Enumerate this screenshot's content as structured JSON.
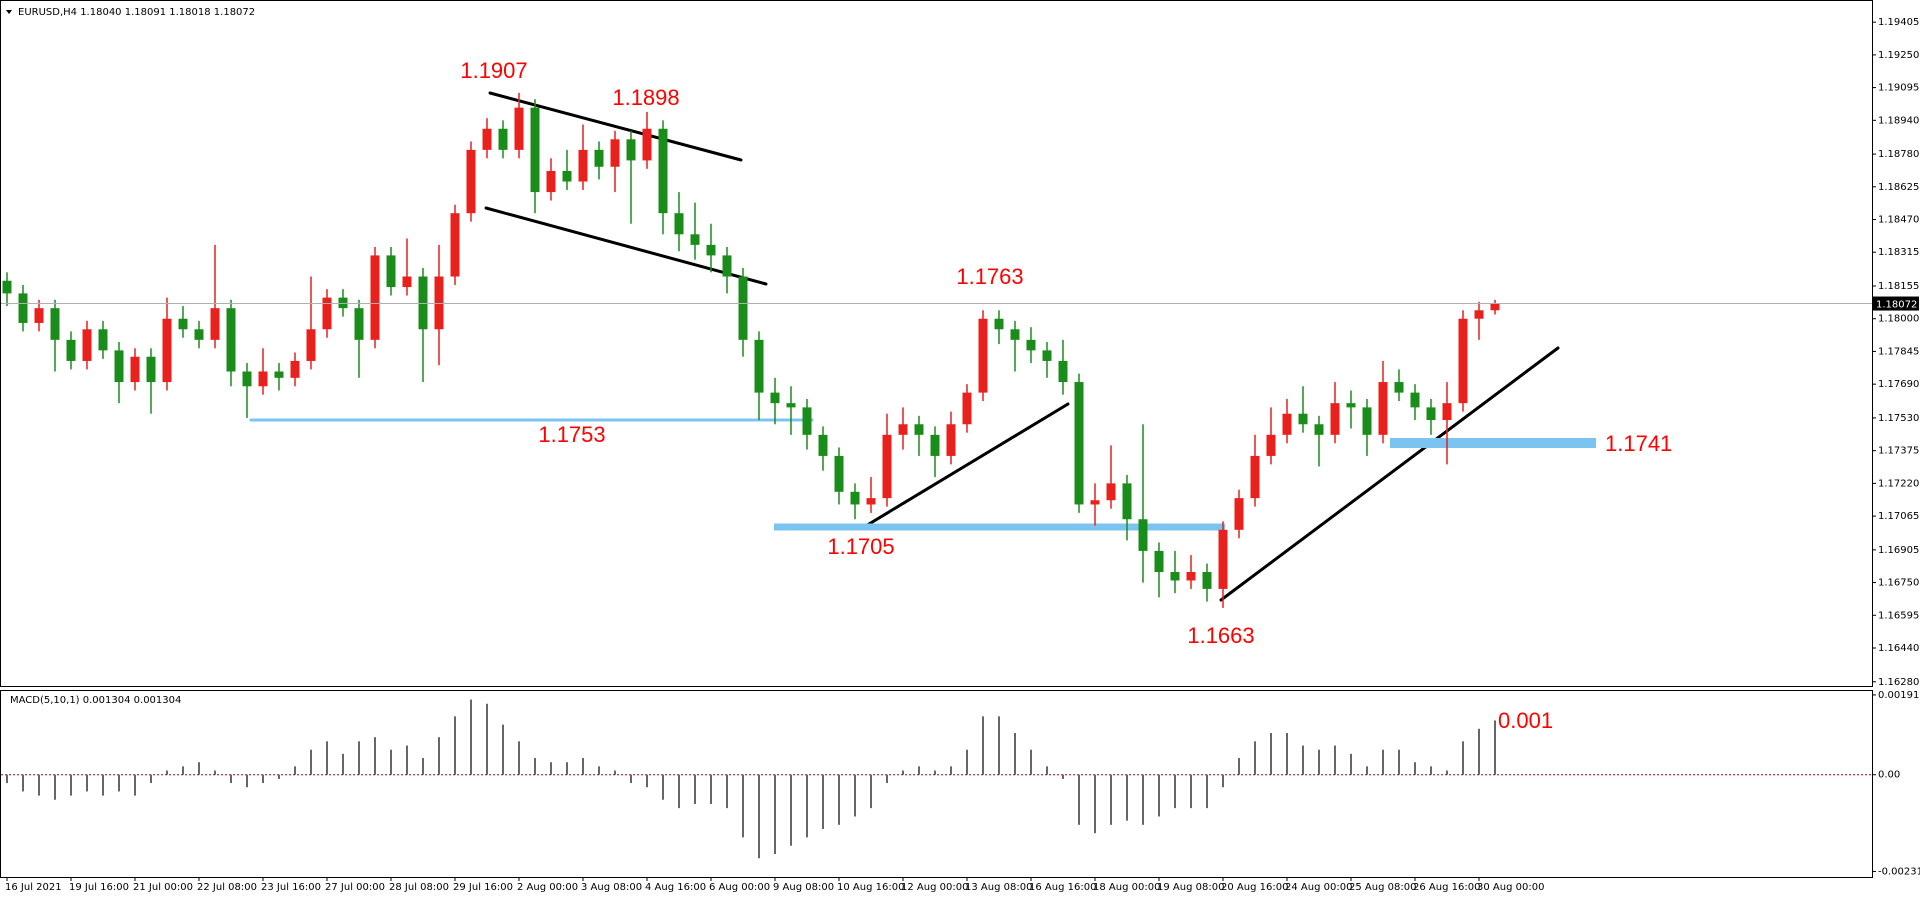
{
  "chart_data": [
    {
      "type": "candlestick",
      "title": "EURUSD,H4  1.18040 1.18091 1.18018 1.18072",
      "categories": [
        "16 Jul 2021",
        null,
        null,
        null,
        "19 Jul 16:00",
        null,
        null,
        null,
        "21 Jul 00:00",
        null,
        null,
        null,
        "22 Jul 08:00",
        null,
        null,
        null,
        "23 Jul 16:00",
        null,
        null,
        null,
        "27 Jul 00:00",
        null,
        null,
        null,
        "28 Jul 08:00",
        null,
        null,
        null,
        "29 Jul 16:00",
        null,
        null,
        null,
        "2 Aug 00:00",
        null,
        null,
        null,
        "3 Aug 08:00",
        null,
        null,
        null,
        "4 Aug 16:00",
        null,
        null,
        null,
        "6 Aug 00:00",
        null,
        null,
        null,
        "9 Aug 08:00",
        null,
        null,
        null,
        "10 Aug 16:00",
        null,
        null,
        null,
        "12 Aug 00:00",
        null,
        null,
        null,
        "13 Aug 08:00",
        null,
        null,
        null,
        "16 Aug 16:00",
        null,
        null,
        null,
        "18 Aug 00:00",
        null,
        null,
        null,
        "19 Aug 08:00",
        null,
        null,
        null,
        "20 Aug 16:00",
        null,
        null,
        null,
        "24 Aug 00:00",
        null,
        null,
        null,
        "25 Aug 08:00",
        null,
        null,
        null,
        "26 Aug 16:00",
        null,
        null,
        null,
        "30 Aug 00:00",
        null
      ],
      "ohlc": [
        [
          1.1818,
          1.1822,
          1.1806,
          1.1812
        ],
        [
          1.1812,
          1.1816,
          1.1794,
          1.1798
        ],
        [
          1.1798,
          1.1809,
          1.1794,
          1.1805
        ],
        [
          1.1805,
          1.1809,
          1.1775,
          1.179
        ],
        [
          1.179,
          1.1794,
          1.1776,
          1.178
        ],
        [
          1.178,
          1.1799,
          1.1776,
          1.1795
        ],
        [
          1.1795,
          1.1799,
          1.1781,
          1.1785
        ],
        [
          1.1785,
          1.1789,
          1.176,
          1.177
        ],
        [
          1.177,
          1.1786,
          1.1766,
          1.1782
        ],
        [
          1.1782,
          1.1786,
          1.1755,
          1.177
        ],
        [
          1.177,
          1.181,
          1.1766,
          1.18
        ],
        [
          1.18,
          1.1806,
          1.1791,
          1.1795
        ],
        [
          1.1795,
          1.1799,
          1.1786,
          1.179
        ],
        [
          1.179,
          1.1835,
          1.1786,
          1.1805
        ],
        [
          1.1805,
          1.1809,
          1.1768,
          1.1775
        ],
        [
          1.1775,
          1.1779,
          1.1753,
          1.1768
        ],
        [
          1.1768,
          1.1786,
          1.1764,
          1.1775
        ],
        [
          1.1775,
          1.1779,
          1.1766,
          1.1772
        ],
        [
          1.1772,
          1.1784,
          1.1768,
          1.178
        ],
        [
          1.178,
          1.182,
          1.1776,
          1.1795
        ],
        [
          1.1795,
          1.1814,
          1.1791,
          1.181
        ],
        [
          1.181,
          1.1814,
          1.1801,
          1.1805
        ],
        [
          1.1805,
          1.1809,
          1.1772,
          1.179
        ],
        [
          1.179,
          1.1834,
          1.1786,
          1.183
        ],
        [
          1.183,
          1.1834,
          1.1811,
          1.1815
        ],
        [
          1.1815,
          1.1838,
          1.1811,
          1.182
        ],
        [
          1.182,
          1.1824,
          1.177,
          1.1795
        ],
        [
          1.1795,
          1.1835,
          1.1778,
          1.182
        ],
        [
          1.182,
          1.1854,
          1.1816,
          1.185
        ],
        [
          1.185,
          1.1884,
          1.1846,
          1.188
        ],
        [
          1.188,
          1.1895,
          1.1876,
          1.189
        ],
        [
          1.189,
          1.1894,
          1.1876,
          1.188
        ],
        [
          1.188,
          1.1907,
          1.1876,
          1.19
        ],
        [
          1.19,
          1.1904,
          1.185,
          1.186
        ],
        [
          1.186,
          1.1876,
          1.1856,
          1.187
        ],
        [
          1.187,
          1.188,
          1.1861,
          1.1865
        ],
        [
          1.1865,
          1.1892,
          1.1861,
          1.188
        ],
        [
          1.188,
          1.1884,
          1.1866,
          1.1872
        ],
        [
          1.1872,
          1.1889,
          1.186,
          1.1885
        ],
        [
          1.1885,
          1.1889,
          1.1845,
          1.1875
        ],
        [
          1.1875,
          1.1898,
          1.1871,
          1.189
        ],
        [
          1.189,
          1.1894,
          1.184,
          1.185
        ],
        [
          1.185,
          1.186,
          1.1832,
          1.184
        ],
        [
          1.184,
          1.1855,
          1.1828,
          1.1835
        ],
        [
          1.1835,
          1.1845,
          1.1822,
          1.183
        ],
        [
          1.183,
          1.1834,
          1.1812,
          1.182
        ],
        [
          1.182,
          1.1824,
          1.1782,
          1.179
        ],
        [
          1.179,
          1.1794,
          1.1752,
          1.1765
        ],
        [
          1.1765,
          1.1772,
          1.175,
          1.176
        ],
        [
          1.176,
          1.1768,
          1.1745,
          1.1758
        ],
        [
          1.1758,
          1.1762,
          1.1738,
          1.1745
        ],
        [
          1.1745,
          1.1749,
          1.1728,
          1.1735
        ],
        [
          1.1735,
          1.1739,
          1.1712,
          1.1718
        ],
        [
          1.1718,
          1.1722,
          1.1705,
          1.1712
        ],
        [
          1.1712,
          1.1725,
          1.1708,
          1.1715
        ],
        [
          1.1715,
          1.1755,
          1.1711,
          1.1745
        ],
        [
          1.1745,
          1.1758,
          1.1738,
          1.175
        ],
        [
          1.175,
          1.1754,
          1.1735,
          1.1745
        ],
        [
          1.1745,
          1.1749,
          1.1725,
          1.1735
        ],
        [
          1.1735,
          1.1756,
          1.1731,
          1.175
        ],
        [
          1.175,
          1.1769,
          1.1746,
          1.1765
        ],
        [
          1.1765,
          1.1804,
          1.1761,
          1.18
        ],
        [
          1.18,
          1.1804,
          1.1788,
          1.1795
        ],
        [
          1.1795,
          1.1799,
          1.1775,
          1.179
        ],
        [
          1.179,
          1.1796,
          1.1779,
          1.1785
        ],
        [
          1.1785,
          1.1789,
          1.1772,
          1.178
        ],
        [
          1.178,
          1.179,
          1.1764,
          1.177
        ],
        [
          1.177,
          1.1774,
          1.1708,
          1.1712
        ],
        [
          1.1712,
          1.1722,
          1.1702,
          1.1714
        ],
        [
          1.1714,
          1.174,
          1.171,
          1.1722
        ],
        [
          1.1722,
          1.1726,
          1.1695,
          1.1705
        ],
        [
          1.1705,
          1.175,
          1.1675,
          1.169
        ],
        [
          1.169,
          1.1694,
          1.1668,
          1.168
        ],
        [
          1.168,
          1.169,
          1.167,
          1.1676
        ],
        [
          1.1676,
          1.1688,
          1.1672,
          1.168
        ],
        [
          1.168,
          1.1684,
          1.1666,
          1.1672
        ],
        [
          1.1672,
          1.1704,
          1.1663,
          1.17
        ],
        [
          1.17,
          1.1719,
          1.1696,
          1.1715
        ],
        [
          1.1715,
          1.1745,
          1.1711,
          1.1735
        ],
        [
          1.1735,
          1.1758,
          1.1731,
          1.1745
        ],
        [
          1.1745,
          1.1762,
          1.1741,
          1.1755
        ],
        [
          1.1755,
          1.1768,
          1.1746,
          1.175
        ],
        [
          1.175,
          1.1754,
          1.173,
          1.1745
        ],
        [
          1.1745,
          1.177,
          1.1741,
          1.176
        ],
        [
          1.176,
          1.1766,
          1.1748,
          1.1758
        ],
        [
          1.1758,
          1.1762,
          1.1735,
          1.1745
        ],
        [
          1.1745,
          1.178,
          1.1741,
          1.177
        ],
        [
          1.177,
          1.1776,
          1.1761,
          1.1765
        ],
        [
          1.1765,
          1.1769,
          1.1752,
          1.1758
        ],
        [
          1.1758,
          1.1762,
          1.1745,
          1.1752
        ],
        [
          1.1752,
          1.177,
          1.1731,
          1.176
        ],
        [
          1.176,
          1.1804,
          1.1756,
          1.18
        ],
        [
          1.18,
          1.1808,
          1.179,
          1.1804
        ],
        [
          1.1804,
          1.1809,
          1.1802,
          1.1807
        ]
      ],
      "up_color": "#e8201e",
      "down_color": "#1a8c1a",
      "current_price": 1.18072,
      "ylim": [
        1.1626,
        1.1951
      ],
      "yticks": [
        1.19405,
        {
          "value": 1.1925,
          "label": "1.19250"
        },
        1.19095,
        {
          "value": 1.1894,
          "label": "1.18940"
        },
        {
          "value": 1.1878,
          "label": "1.18780"
        },
        1.18625,
        {
          "value": 1.1847,
          "label": "1.18470"
        },
        1.18315,
        1.18155,
        {
          "value": 1.18,
          "label": "1.18000"
        },
        1.17845,
        {
          "value": 1.1769,
          "label": "1.17690"
        },
        {
          "value": 1.1753,
          "label": "1.17530"
        },
        1.17375,
        {
          "value": 1.1722,
          "label": "1.17220"
        },
        1.17065,
        1.16905,
        {
          "value": 1.1675,
          "label": "1.16750"
        },
        1.16595,
        {
          "value": 1.1644,
          "label": "1.16440"
        },
        {
          "value": 1.1628,
          "label": "1.16280"
        }
      ],
      "annotations": [
        "1.1907",
        "1.1898",
        "1.1763",
        "1.1753",
        "1.1705",
        "1.1663",
        "1.1741"
      ]
    },
    {
      "type": "bar",
      "title": "MACD(5,10,1) 0.001304 0.001304",
      "color": "#333333",
      "values": [
        -0.0002,
        -0.0004,
        -0.0005,
        -0.0006,
        -0.0005,
        -0.0004,
        -0.0005,
        -0.0004,
        -0.0005,
        -0.0002,
        0.0001,
        0.0002,
        0.0003,
        0.0001,
        -0.0002,
        -0.0003,
        -0.0002,
        -0.0001,
        0.0002,
        0.0006,
        0.0008,
        0.0005,
        0.0008,
        0.0009,
        0.0006,
        0.0007,
        0.0004,
        0.0009,
        0.0014,
        0.0018,
        0.0017,
        0.0012,
        0.0008,
        0.0004,
        0.0003,
        0.0003,
        0.0004,
        0.0002,
        0.0001,
        -0.0002,
        -0.0003,
        -0.0006,
        -0.0008,
        -0.0007,
        -0.0007,
        -0.0008,
        -0.0015,
        -0.002,
        -0.0019,
        -0.0017,
        -0.0015,
        -0.0013,
        -0.0012,
        -0.001,
        -0.0008,
        -0.0002,
        0.0001,
        0.0002,
        0.0001,
        0.0002,
        0.0006,
        0.0014,
        0.0014,
        0.001,
        0.0006,
        0.0002,
        -0.0001,
        -0.0012,
        -0.0014,
        -0.0012,
        -0.0011,
        -0.0012,
        -0.001,
        -0.0008,
        -0.0008,
        -0.0008,
        -0.0003,
        0.0004,
        0.0008,
        0.001,
        0.001,
        0.0007,
        0.0006,
        0.0007,
        0.0005,
        0.0002,
        0.0006,
        0.0006,
        0.0003,
        0.0002,
        0.0001,
        0.0008,
        0.0011,
        0.0013
      ],
      "ylim": [
        -0.00245,
        0.00203
      ],
      "yticks": [
        0.001912,
        {
          "value": 0,
          "label": "0.00"
        },
        -0.002317
      ],
      "annotations": [
        "0.001"
      ]
    }
  ]
}
